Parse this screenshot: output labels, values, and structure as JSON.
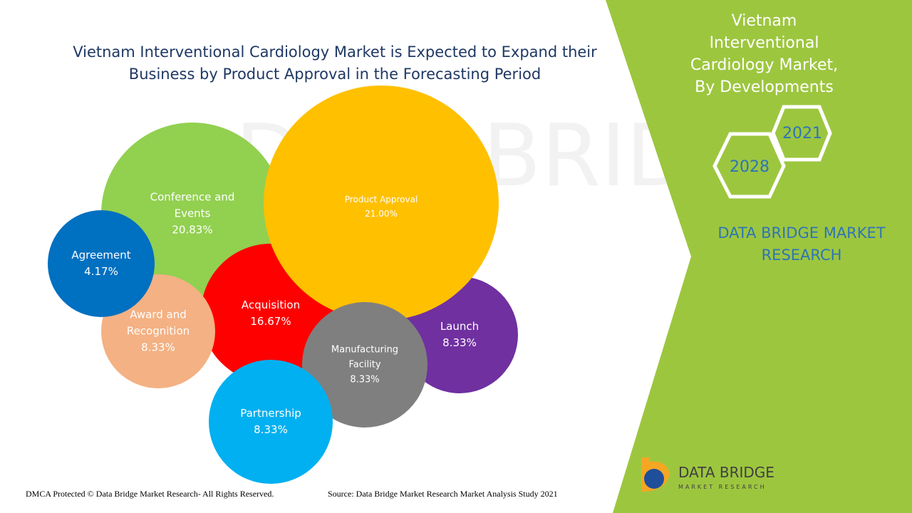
{
  "chart_data": {
    "type": "bubble",
    "title": "Vietnam Interventional Cardiology Market is Expected to Expand their Business by Product Approval in the Forecasting Period",
    "categories": [
      "Conference and Events",
      "Launch",
      "Acquisition",
      "Product Approval",
      "Award and Recognition",
      "Agreement",
      "Manufacturing Facility",
      "Partnership"
    ],
    "values": [
      20.83,
      8.33,
      16.67,
      21.0,
      8.33,
      4.17,
      8.33,
      8.33
    ],
    "value_labels": [
      "20.83%",
      "8.33%",
      "16.67%",
      "21.00%",
      "8.33%",
      "4.17%",
      "8.33%",
      "8.33%"
    ],
    "colors": [
      "#92d050",
      "#7030a0",
      "#ff0000",
      "#ffc000",
      "#f4b183",
      "#0070c0",
      "#7f7f7f",
      "#00b0f0"
    ]
  },
  "side_panel": {
    "title": "Vietnam Interventional Cardiology Market, By Developments",
    "years": [
      "2021",
      "2028"
    ],
    "brand": "DATA BRIDGE MARKET RESEARCH"
  },
  "logo": {
    "name": "DATA BRIDGE",
    "tagline": "MARKET RESEARCH"
  },
  "footer": {
    "copyright": "DMCA Protected © Data Bridge Market Research- All Rights Reserved.",
    "source": "Source: Data Bridge Market Research Market Analysis Study 2021"
  }
}
